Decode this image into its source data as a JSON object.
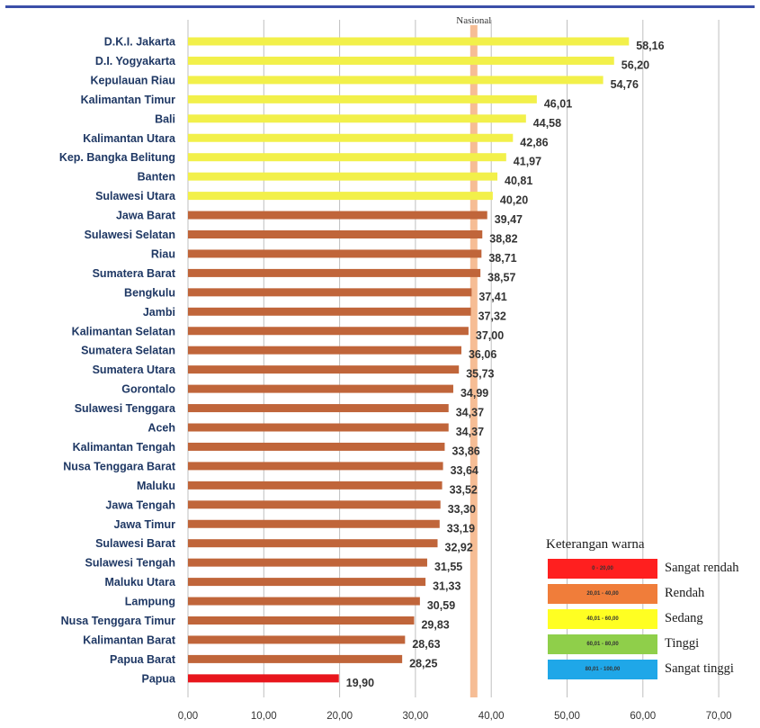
{
  "chart_data": {
    "type": "bar",
    "orientation": "horizontal",
    "categories": [
      "D.K.I. Jakarta",
      "D.I. Yogyakarta",
      "Kepulauan Riau",
      "Kalimantan Timur",
      "Bali",
      "Kalimantan Utara",
      "Kep. Bangka Belitung",
      "Banten",
      "Sulawesi Utara",
      "Jawa Barat",
      "Sulawesi Selatan",
      "Riau",
      "Sumatera Barat",
      "Bengkulu",
      "Jambi",
      "Kalimantan Selatan",
      "Sumatera Selatan",
      "Sumatera Utara",
      "Gorontalo",
      "Sulawesi Tenggara",
      "Aceh",
      "Kalimantan Tengah",
      "Nusa Tenggara Barat",
      "Maluku",
      "Jawa Tengah",
      "Jawa Timur",
      "Sulawesi Barat",
      "Sulawesi Tengah",
      "Maluku Utara",
      "Lampung",
      "Nusa Tenggara Timur",
      "Kalimantan Barat",
      "Papua Barat",
      "Papua"
    ],
    "values": [
      58.16,
      56.2,
      54.76,
      46.01,
      44.58,
      42.86,
      41.97,
      40.81,
      40.2,
      39.47,
      38.82,
      38.71,
      38.57,
      37.41,
      37.32,
      37.0,
      36.06,
      35.73,
      34.99,
      34.37,
      34.37,
      33.86,
      33.64,
      33.52,
      33.3,
      33.19,
      32.92,
      31.55,
      31.33,
      30.59,
      29.83,
      28.63,
      28.25,
      19.9
    ],
    "value_labels": [
      "58,16",
      "56,20",
      "54,76",
      "46,01",
      "44,58",
      "42,86",
      "41,97",
      "40,81",
      "40,20",
      "39,47",
      "38,82",
      "38,71",
      "38,57",
      "37,41",
      "37,32",
      "37,00",
      "36,06",
      "35,73",
      "34,99",
      "34,37",
      "34,37",
      "33,86",
      "33,64",
      "33,52",
      "33,30",
      "33,19",
      "32,92",
      "31,55",
      "31,33",
      "30,59",
      "29,83",
      "28,63",
      "28,25",
      "19,90"
    ],
    "xlim": [
      0,
      70
    ],
    "ticks": [
      0,
      10,
      20,
      30,
      40,
      50,
      60,
      70
    ],
    "tick_labels": [
      "0,00",
      "10,00",
      "20,00",
      "30,00",
      "40,00",
      "50,00",
      "60,00",
      "70,00"
    ],
    "grid": true,
    "reference_line": {
      "label": "Nasional",
      "value": 37.7,
      "color": "#f4b183"
    },
    "legend": {
      "title": "Keterangan warna",
      "placement": "bottom-right",
      "items": [
        {
          "range": "0 - 20,00",
          "label": "Sangat rendah",
          "color": "#ff1f1f"
        },
        {
          "range": "20,01 - 40,00",
          "label": "Rendah",
          "color": "#f07d3a"
        },
        {
          "range": "40,01 - 60,00",
          "label": "Sedang",
          "color": "#ffff22"
        },
        {
          "range": "60,01 - 80,00",
          "label": "Tinggi",
          "color": "#8fcf4a"
        },
        {
          "range": "80,01 - 100,00",
          "label": "Sangat tinggi",
          "color": "#1fa7e8"
        }
      ]
    },
    "bar_colors": {
      "sedang": "#f2f04a",
      "rendah": "#c0653a",
      "sangat_rendah": "#e8161c"
    }
  }
}
